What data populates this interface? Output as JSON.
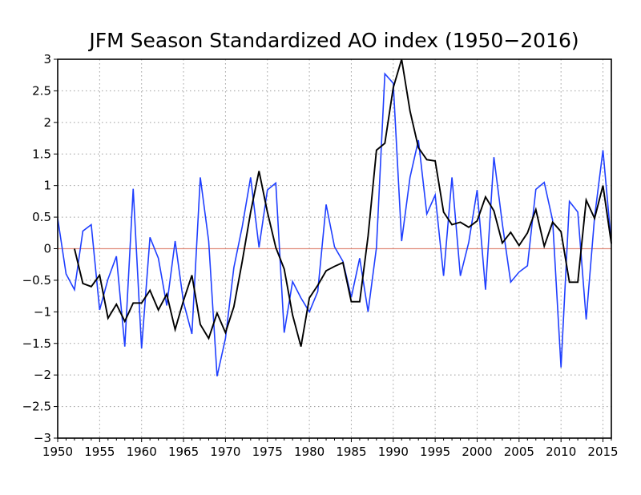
{
  "chart_data": {
    "type": "line",
    "title": "JFM Season Standardized AO index (1950−2016)",
    "xlabel": "",
    "ylabel": "",
    "xlim": [
      1950,
      2016
    ],
    "ylim": [
      -3,
      3
    ],
    "x_ticks": [
      1950,
      1955,
      1960,
      1965,
      1970,
      1975,
      1980,
      1985,
      1990,
      1995,
      2000,
      2005,
      2010,
      2015
    ],
    "y_ticks": [
      3,
      2.5,
      2,
      1.5,
      1,
      0.5,
      0,
      -0.5,
      -1,
      -1.5,
      -2,
      -2.5,
      -3
    ],
    "y_tick_labels": [
      "3",
      "2.5",
      "2",
      "1.5",
      "1",
      "0.5",
      "0",
      "−0.5",
      "−1",
      "−1.5",
      "−2",
      "−2.5",
      "−3"
    ],
    "grid": true,
    "reference_line": {
      "y": 0,
      "color": "#e08a7a"
    },
    "series": [
      {
        "color": "#1f3fff",
        "x": [
          1950,
          1951,
          1952,
          1953,
          1954,
          1955,
          1956,
          1957,
          1958,
          1959,
          1960,
          1961,
          1962,
          1963,
          1964,
          1965,
          1966,
          1967,
          1968,
          1969,
          1970,
          1971,
          1972,
          1973,
          1974,
          1975,
          1976,
          1977,
          1978,
          1979,
          1980,
          1981,
          1982,
          1983,
          1984,
          1985,
          1986,
          1987,
          1988,
          1989,
          1990,
          1991,
          1992,
          1993,
          1994,
          1995,
          1996,
          1997,
          1998,
          1999,
          2000,
          2001,
          2002,
          2003,
          2004,
          2005,
          2006,
          2007,
          2008,
          2009,
          2010,
          2011,
          2012,
          2013,
          2014,
          2015,
          2016
        ],
        "values": [
          0.48,
          -0.4,
          -0.65,
          0.28,
          0.38,
          -0.97,
          -0.48,
          -0.12,
          -1.55,
          0.95,
          -1.58,
          0.18,
          -0.15,
          -0.9,
          0.12,
          -0.85,
          -1.35,
          1.13,
          0.12,
          -2.02,
          -1.42,
          -0.3,
          0.35,
          1.13,
          0.02,
          0.93,
          1.04,
          -1.33,
          -0.52,
          -0.78,
          -1.0,
          -0.68,
          0.7,
          0.03,
          -0.2,
          -0.77,
          -0.15,
          -1.0,
          0.02,
          2.77,
          2.62,
          0.12,
          1.13,
          1.72,
          0.55,
          0.85,
          -0.43,
          1.13,
          -0.43,
          0.1,
          0.93,
          -0.65,
          1.45,
          0.4,
          -0.53,
          -0.37,
          -0.27,
          0.94,
          1.05,
          0.45,
          -1.88,
          0.75,
          0.58,
          -1.12,
          0.5,
          1.56,
          0.08
        ]
      },
      {
        "color": "#000000",
        "x": [
          1952,
          1953,
          1954,
          1955,
          1956,
          1957,
          1958,
          1959,
          1960,
          1961,
          1962,
          1963,
          1964,
          1965,
          1966,
          1967,
          1968,
          1969,
          1970,
          1971,
          1972,
          1973,
          1974,
          1975,
          1976,
          1977,
          1978,
          1979,
          1980,
          1981,
          1982,
          1983,
          1984,
          1985,
          1986,
          1987,
          1988,
          1989,
          1990,
          1991,
          1992,
          1993,
          1994,
          1995,
          1996,
          1997,
          1998,
          1999,
          2000,
          2001,
          2002,
          2003,
          2004,
          2005,
          2006,
          2007,
          2008,
          2009,
          2010,
          2011,
          2012,
          2013,
          2014,
          2015,
          2016
        ],
        "values": [
          0.0,
          -0.55,
          -0.6,
          -0.42,
          -1.1,
          -0.88,
          -1.15,
          -0.86,
          -0.86,
          -0.66,
          -0.97,
          -0.72,
          -1.28,
          -0.82,
          -0.42,
          -1.2,
          -1.42,
          -1.02,
          -1.33,
          -0.92,
          -0.2,
          0.58,
          1.23,
          0.58,
          0.02,
          -0.32,
          -1.05,
          -1.55,
          -0.78,
          -0.58,
          -0.35,
          -0.28,
          -0.22,
          -0.84,
          -0.84,
          0.2,
          1.56,
          1.67,
          2.55,
          3.0,
          2.18,
          1.6,
          1.41,
          1.39,
          0.58,
          0.38,
          0.42,
          0.34,
          0.44,
          0.82,
          0.6,
          0.09,
          0.26,
          0.05,
          0.25,
          0.62,
          0.04,
          0.42,
          0.27,
          -0.53,
          -0.53,
          0.77,
          0.48,
          1.0,
          0.08
        ]
      }
    ]
  }
}
